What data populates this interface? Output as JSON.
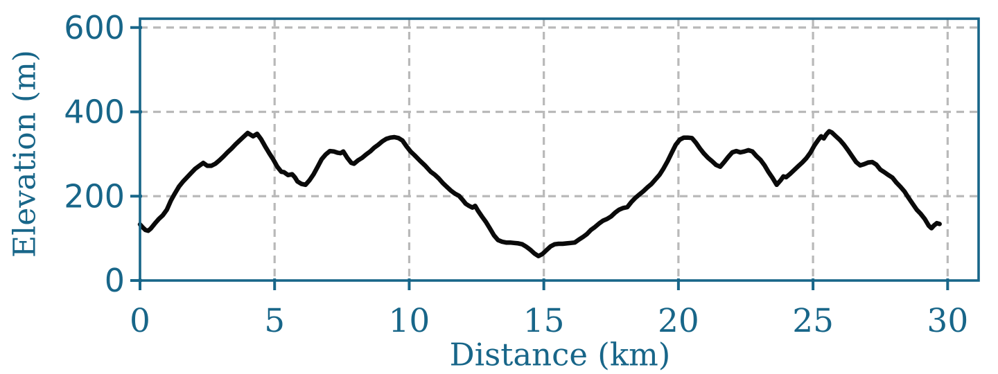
{
  "chart_data": {
    "type": "line",
    "title": "",
    "xlabel": "Distance (km)",
    "ylabel": "Elevation (m)",
    "xlim": [
      0,
      31.15
    ],
    "ylim": [
      0,
      621
    ],
    "xticks": [
      0,
      5,
      10,
      15,
      20,
      25,
      30
    ],
    "yticks": [
      0,
      200,
      400,
      600
    ],
    "grid": true,
    "grid_style": "dashed",
    "legend": "none",
    "axis_color": "#186689",
    "grid_color": "#b9b9b9",
    "line_color": "#0a0a0a",
    "series": [
      {
        "name": "elevation_profile",
        "x": [
          0,
          0.1,
          0.2,
          0.3,
          0.4,
          0.55,
          0.7,
          0.85,
          1.0,
          1.15,
          1.3,
          1.45,
          1.6,
          1.75,
          1.9,
          2.05,
          2.2,
          2.35,
          2.5,
          2.65,
          2.8,
          2.95,
          3.1,
          3.25,
          3.4,
          3.55,
          3.7,
          3.85,
          4.0,
          4.1,
          4.2,
          4.35,
          4.5,
          4.65,
          4.8,
          4.95,
          5.1,
          5.25,
          5.35,
          5.5,
          5.65,
          5.75,
          5.85,
          6.0,
          6.15,
          6.3,
          6.45,
          6.6,
          6.75,
          6.9,
          7.05,
          7.2,
          7.35,
          7.45,
          7.55,
          7.7,
          7.85,
          7.95,
          8.1,
          8.25,
          8.4,
          8.55,
          8.7,
          8.85,
          9.0,
          9.15,
          9.3,
          9.45,
          9.6,
          9.75,
          9.9,
          10.05,
          10.2,
          10.4,
          10.6,
          10.8,
          10.95,
          11.1,
          11.25,
          11.4,
          11.55,
          11.7,
          11.85,
          12.0,
          12.1,
          12.2,
          12.35,
          12.45,
          12.55,
          12.7,
          12.85,
          13.0,
          13.15,
          13.3,
          13.45,
          13.6,
          13.75,
          13.9,
          14.05,
          14.2,
          14.35,
          14.5,
          14.65,
          14.8,
          14.95,
          15.1,
          15.25,
          15.4,
          15.55,
          15.7,
          15.85,
          16.0,
          16.15,
          16.3,
          16.45,
          16.6,
          16.75,
          16.9,
          17.05,
          17.2,
          17.35,
          17.5,
          17.65,
          17.8,
          17.95,
          18.1,
          18.25,
          18.4,
          18.55,
          18.7,
          18.85,
          19.0,
          19.15,
          19.3,
          19.45,
          19.6,
          19.75,
          19.9,
          20.05,
          20.2,
          20.35,
          20.5,
          20.65,
          20.8,
          20.95,
          21.1,
          21.25,
          21.4,
          21.55,
          21.7,
          21.85,
          22.0,
          22.15,
          22.3,
          22.45,
          22.6,
          22.75,
          22.9,
          23.05,
          23.2,
          23.35,
          23.5,
          23.65,
          23.8,
          23.9,
          24.0,
          24.15,
          24.3,
          24.45,
          24.6,
          24.75,
          24.9,
          25.05,
          25.2,
          25.3,
          25.4,
          25.5,
          25.6,
          25.7,
          25.85,
          26.0,
          26.15,
          26.3,
          26.45,
          26.6,
          26.75,
          26.9,
          27.05,
          27.2,
          27.35,
          27.5,
          27.65,
          27.8,
          27.95,
          28.1,
          28.25,
          28.4,
          28.55,
          28.7,
          28.85,
          29.0,
          29.15,
          29.3,
          29.4,
          29.5,
          29.6,
          29.7
        ],
        "y": [
          133,
          126,
          120,
          118,
          123,
          135,
          146,
          155,
          168,
          190,
          207,
          223,
          235,
          245,
          255,
          265,
          272,
          279,
          272,
          272,
          277,
          285,
          294,
          304,
          313,
          323,
          332,
          341,
          350,
          346,
          342,
          348,
          335,
          318,
          302,
          287,
          270,
          258,
          257,
          250,
          252,
          245,
          235,
          229,
          227,
          238,
          252,
          270,
          288,
          299,
          307,
          306,
          303,
          302,
          306,
          291,
          279,
          277,
          285,
          291,
          299,
          306,
          315,
          322,
          330,
          336,
          339,
          340,
          338,
          332,
          318,
          306,
          297,
          284,
          272,
          258,
          251,
          242,
          231,
          222,
          213,
          206,
          201,
          190,
          182,
          178,
          173,
          177,
          166,
          152,
          139,
          123,
          107,
          96,
          92,
          90,
          90,
          89,
          88,
          86,
          80,
          73,
          64,
          58,
          63,
          72,
          81,
          86,
          87,
          87,
          88,
          89,
          90,
          97,
          103,
          110,
          120,
          127,
          135,
          142,
          146,
          152,
          161,
          168,
          172,
          174,
          186,
          196,
          204,
          212,
          221,
          229,
          240,
          251,
          266,
          283,
          303,
          322,
          334,
          339,
          339,
          338,
          327,
          313,
          301,
          291,
          283,
          274,
          270,
          281,
          293,
          304,
          307,
          304,
          306,
          309,
          306,
          295,
          286,
          273,
          257,
          243,
          227,
          238,
          247,
          245,
          253,
          262,
          271,
          280,
          290,
          303,
          320,
          334,
          342,
          337,
          347,
          354,
          351,
          342,
          333,
          322,
          309,
          295,
          281,
          273,
          276,
          280,
          281,
          275,
          263,
          257,
          250,
          244,
          232,
          222,
          211,
          196,
          182,
          168,
          158,
          146,
          130,
          124,
          131,
          136,
          134
        ]
      }
    ]
  }
}
